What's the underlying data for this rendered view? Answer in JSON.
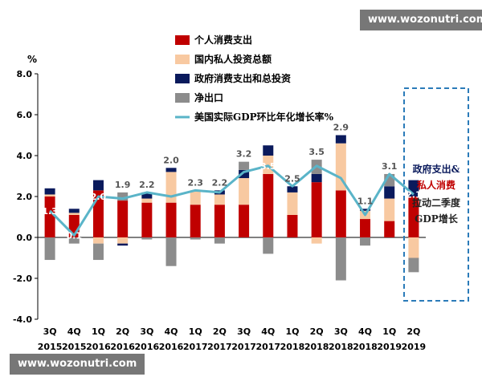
{
  "watermark_top": "www.wozonutri.com",
  "watermark_bottom": "www.wozonutri.com",
  "annotation": {
    "line1": "政府支出&",
    "line2": "私人消费",
    "line3": "拉动二季度",
    "line4": "GDP增长"
  },
  "colors": {
    "private_consumption": "#c00000",
    "investment": "#f8c9a1",
    "government": "#0a1a5c",
    "net_exports": "#8c8c8c",
    "gdp_line": "#5ab4c8",
    "dashed_box": "#2b7bb9"
  },
  "chart_data": {
    "type": "bar",
    "ylabel": "%",
    "ylim": [
      -4.0,
      8.0
    ],
    "yticks": [
      "8.0",
      "6.0",
      "4.0",
      "2.0",
      "0.0",
      "-2.0",
      "-4.0"
    ],
    "categories": [
      [
        "3Q",
        "2015"
      ],
      [
        "4Q",
        "2015"
      ],
      [
        "1Q",
        "2016"
      ],
      [
        "2Q",
        "2016"
      ],
      [
        "3Q",
        "2016"
      ],
      [
        "4Q",
        "2016"
      ],
      [
        "1Q",
        "2017"
      ],
      [
        "2Q",
        "2017"
      ],
      [
        "3Q",
        "2017"
      ],
      [
        "4Q",
        "2017"
      ],
      [
        "1Q",
        "2018"
      ],
      [
        "2Q",
        "2018"
      ],
      [
        "3Q",
        "2018"
      ],
      [
        "4Q",
        "2018"
      ],
      [
        "1Q",
        "2019"
      ],
      [
        "2Q",
        "2019"
      ]
    ],
    "series": [
      {
        "name": "个人消费支出",
        "values": [
          2.0,
          1.1,
          2.3,
          1.8,
          1.7,
          1.7,
          1.6,
          1.6,
          1.6,
          3.1,
          1.1,
          2.7,
          2.3,
          0.9,
          0.8,
          2.0
        ]
      },
      {
        "name": "国内私人投资总额",
        "values": [
          0.1,
          0.1,
          -0.3,
          -0.3,
          0.2,
          1.5,
          0.7,
          0.5,
          1.3,
          0.9,
          1.1,
          -0.3,
          2.3,
          0.4,
          1.1,
          -1.0
        ]
      },
      {
        "name": "政府消费支出和总投资",
        "values": [
          0.3,
          0.2,
          0.5,
          -0.1,
          0.3,
          0.2,
          0.0,
          0.2,
          0.4,
          0.5,
          0.3,
          0.4,
          0.4,
          0.1,
          0.6,
          0.8
        ]
      },
      {
        "name": "净出口",
        "values": [
          -1.1,
          -0.3,
          -0.8,
          0.4,
          -0.1,
          -1.4,
          -0.1,
          -0.3,
          0.4,
          -0.8,
          0.0,
          0.7,
          -2.1,
          -0.4,
          0.6,
          -0.7
        ]
      },
      {
        "name": "美国实际GDP环比年化增长率%",
        "type": "line",
        "values": [
          1.3,
          0.1,
          2.0,
          1.9,
          2.2,
          2.0,
          2.3,
          2.2,
          3.2,
          3.5,
          2.5,
          3.5,
          2.9,
          1.1,
          3.1,
          2.1
        ]
      }
    ],
    "data_labels": [
      "1.3",
      "0.1",
      "2.0",
      "1.9",
      "2.2",
      "2.0",
      "2.3",
      "2.2",
      "3.2",
      "3.5",
      "2.5",
      "3.5",
      "2.9",
      "1.1",
      "3.1",
      "2.1"
    ],
    "legend_position": "top-left",
    "grid": false
  }
}
